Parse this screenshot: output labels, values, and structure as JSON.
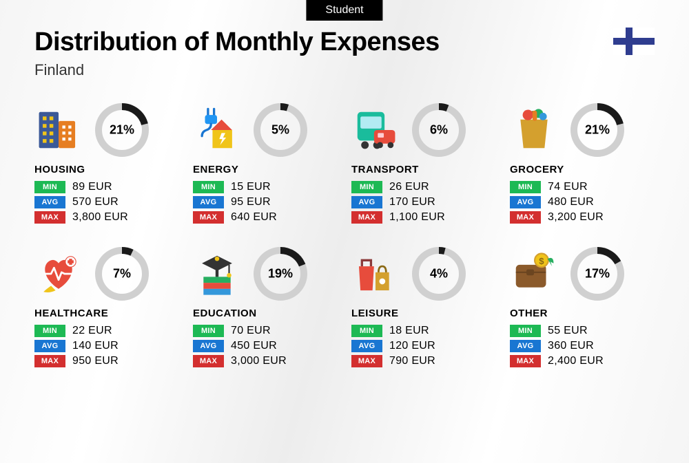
{
  "tag": "Student",
  "title": "Distribution of Monthly Expenses",
  "subtitle": "Finland",
  "flag": {
    "bg": "#ffffff",
    "cross": "#2f3d8f"
  },
  "ring": {
    "radius": 34,
    "stroke_width": 10,
    "bg_color": "#d0d0d0",
    "fg_color": "#1a1a1a",
    "label_fontsize": 18
  },
  "badges": {
    "min": {
      "label": "MIN",
      "bg": "#1db954"
    },
    "avg": {
      "label": "AVG",
      "bg": "#1976d2"
    },
    "max": {
      "label": "MAX",
      "bg": "#d32f2f"
    }
  },
  "currency": "EUR",
  "categories": [
    {
      "key": "housing",
      "label": "HOUSING",
      "percent": 21,
      "min": "89 EUR",
      "avg": "570 EUR",
      "max": "3,800 EUR",
      "icon": "building"
    },
    {
      "key": "energy",
      "label": "ENERGY",
      "percent": 5,
      "min": "15 EUR",
      "avg": "95 EUR",
      "max": "640 EUR",
      "icon": "energy"
    },
    {
      "key": "transport",
      "label": "TRANSPORT",
      "percent": 6,
      "min": "26 EUR",
      "avg": "170 EUR",
      "max": "1,100 EUR",
      "icon": "transport"
    },
    {
      "key": "grocery",
      "label": "GROCERY",
      "percent": 21,
      "min": "74 EUR",
      "avg": "480 EUR",
      "max": "3,200 EUR",
      "icon": "grocery"
    },
    {
      "key": "healthcare",
      "label": "HEALTHCARE",
      "percent": 7,
      "min": "22 EUR",
      "avg": "140 EUR",
      "max": "950 EUR",
      "icon": "healthcare"
    },
    {
      "key": "education",
      "label": "EDUCATION",
      "percent": 19,
      "min": "70 EUR",
      "avg": "450 EUR",
      "max": "3,000 EUR",
      "icon": "education"
    },
    {
      "key": "leisure",
      "label": "LEISURE",
      "percent": 4,
      "min": "18 EUR",
      "avg": "120 EUR",
      "max": "790 EUR",
      "icon": "leisure"
    },
    {
      "key": "other",
      "label": "OTHER",
      "percent": 17,
      "min": "55 EUR",
      "avg": "360 EUR",
      "max": "2,400 EUR",
      "icon": "other"
    }
  ],
  "icon_svgs": {
    "building": "<svg viewBox='0 0 64 64'><rect x='6' y='8' width='26' height='48' rx='2' fill='#3b5998'/><rect x='32' y='20' width='22' height='36' rx='2' fill='#e67e22'/><rect x='11' y='14' width='5' height='5' fill='#f0c419'/><rect x='20' y='14' width='5' height='5' fill='#f0c419'/><rect x='11' y='24' width='5' height='5' fill='#f0c419'/><rect x='20' y='24' width='5' height='5' fill='#f0c419'/><rect x='11' y='34' width='5' height='5' fill='#f0c419'/><rect x='20' y='34' width='5' height='5' fill='#f0c419'/><rect x='11' y='44' width='5' height='5' fill='#f0c419'/><rect x='20' y='44' width='5' height='5' fill='#f0c419'/><rect x='37' y='26' width='4' height='4' fill='#fff'/><rect x='45' y='26' width='4' height='4' fill='#fff'/><rect x='37' y='34' width='4' height='4' fill='#fff'/><rect x='45' y='34' width='4' height='4' fill='#fff'/><rect x='37' y='42' width='4' height='4' fill='#fff'/><rect x='45' y='42' width='4' height='4' fill='#fff'/></svg>",
    "energy": "<svg viewBox='0 0 64 64'><path d='M20 4 L20 12' stroke='#1976d2' stroke-width='3' stroke-linecap='round'/><path d='M28 4 L28 12' stroke='#1976d2' stroke-width='3' stroke-linecap='round'/><rect x='16' y='12' width='16' height='12' rx='3' fill='#2196f3'/><path d='M24 24 Q24 30 18 32 Q12 34 12 40' stroke='#1976d2' stroke-width='3' fill='none' stroke-linecap='round'/><path d='M24 32 L52 32 L38 18 Z' fill='#e74c3c'/><rect x='26' y='32' width='26' height='24' fill='#f0c419'/><path d='M38 36 L35 44 L39 44 L36 52 L44 42 L40 42 L43 36 Z' fill='#fff'/></svg>",
    "transport": "<svg viewBox='0 0 64 64'><rect x='8' y='8' width='36' height='38' rx='5' fill='#1abc9c'/><rect x='12' y='14' width='28' height='16' rx='2' fill='#b2ebf2'/><circle cx='18' cy='52' r='5' fill='#333'/><circle cx='34' cy='52' r='5' fill='#333'/><rect x='30' y='32' width='28' height='18' rx='4' fill='#e74c3c'/><rect x='35' y='36' width='8' height='6' rx='1' fill='#ffcdd2'/><circle cx='38' cy='52' r='4' fill='#333'/><circle cx='52' cy='52' r='4' fill='#333'/></svg>",
    "grocery": "<svg viewBox='0 0 64 64'><path d='M14 18 L50 18 L46 56 L18 56 Z' fill='#d4a02e'/><path d='M22 18 Q22 8 32 8 Q42 8 42 18' stroke='#8b6914' stroke-width='3' fill='none'/><circle cx='24' cy='12' r='7' fill='#e74c3c'/><circle cx='38' cy='10' r='6' fill='#27ae60'/><rect x='30' y='6' width='6' height='14' rx='3' fill='#e67e22'/><circle cx='44' cy='14' r='5' fill='#3498db'/></svg>",
    "healthcare": "<svg viewBox='0 0 64 64'><path d='M32 52 C10 38 10 18 22 14 C28 12 32 18 32 18 C32 18 36 12 42 14 C54 18 54 38 32 52 Z' fill='#e74c3c'/><path d='M14 32 L22 32 L26 24 L32 40 L36 30 L40 32 L50 32' stroke='#fff' stroke-width='2.5' fill='none' stroke-linecap='round' stroke-linejoin='round'/><circle cx='48' cy='16' r='7' fill='#fff' stroke='#e74c3c' stroke-width='1'/><rect x='46' y='12' width='4' height='8' fill='#e74c3c'/><rect x='44' y='14' width='8' height='4' fill='#e74c3c'/><path d='M22 48 Q16 52 12 56 Q20 58 28 54' fill='#f0c419'/></svg>",
    "education": "<svg viewBox='0 0 64 64'><rect x='14' y='36' width='36' height='8' fill='#27ae60'/><rect x='14' y='44' width='36' height='8' fill='#e74c3c'/><rect x='14' y='52' width='36' height='8' fill='#3498db'/><path d='M32 8 L12 18 L32 28 L52 18 Z' fill='#333'/><rect x='30' y='24' width='4' height='12' fill='#333'/><circle cx='32' cy='12' r='3' fill='#f0c419'/><path d='M48 20 L48 32' stroke='#333' stroke-width='2'/><circle cx='48' cy='34' r='3' fill='#f0c419'/></svg>",
    "leisure": "<svg viewBox='0 0 64 64'><path d='M10 22 L30 22 L28 54 L12 54 Z' fill='#e74c3c'/><path d='M14 22 L14 14 L26 14 L26 22' stroke='#8b3a3a' stroke-width='3' fill='none'/><rect x='32' y='30' width='18' height='24' fill='#d4a02e'/><path d='M36 30 Q36 22 41 22 Q46 22 46 30' stroke='#8b6914' stroke-width='2.5' fill='none'/><circle cx='41' cy='42' r='4' fill='#fff'/></svg>",
    "other": "<svg viewBox='0 0 64 64'><rect x='8' y='20' width='40' height='30' rx='5' fill='#8b5a2b'/><path d='M8 30 L48 30' stroke='#6b4520' stroke-width='2'/><rect x='22' y='26' width='10' height='8' rx='2' fill='#6b4520'/><circle cx='42' cy='14' r='9' fill='#f0c419' stroke='#d4a02e' stroke-width='2'/><text x='42' y='19' font-size='12' text-anchor='middle' fill='#8b6914' font-weight='bold'>$</text><path d='M50 12 Q58 8 58 18 L54 16 L56 22 Z' fill='#27ae60'/></svg>"
  }
}
